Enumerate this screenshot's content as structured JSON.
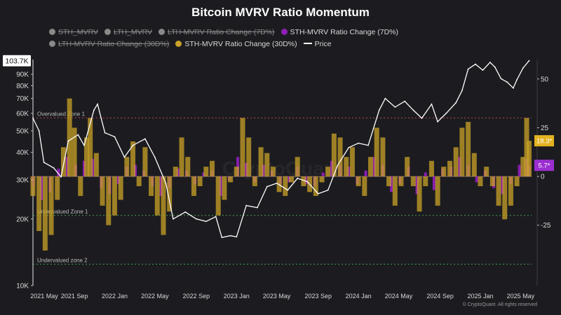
{
  "title": "Bitcoin MVRV Ratio Momentum",
  "legend": [
    {
      "label": "STH_MVRV",
      "color": "#8a8a8a",
      "hidden": true,
      "kind": "dot"
    },
    {
      "label": "LTH_MVRV",
      "color": "#8a8a8a",
      "hidden": true,
      "kind": "dot"
    },
    {
      "label": "LTH-MVRV Ratio Change (7D%)",
      "color": "#8a8a8a",
      "hidden": true,
      "kind": "dot"
    },
    {
      "label": "STH-MVRV Ratio Change (7D%)",
      "color": "#8e1fb8",
      "hidden": false,
      "kind": "dot"
    },
    {
      "label": "LTH-MVRV Ratio Change (30D%)",
      "color": "#8a8a8a",
      "hidden": true,
      "kind": "dot"
    },
    {
      "label": "STH-MVRV Ratio Change (30D%)",
      "color": "#c9a227",
      "hidden": false,
      "kind": "dot"
    },
    {
      "label": "Price",
      "color": "#ffffff",
      "hidden": false,
      "kind": "line"
    }
  ],
  "footer": "© CryptoQuant. All rights reserved",
  "chart_data": {
    "type": "line",
    "x_ticks": [
      "2021 May",
      "2021 Sep",
      "2022 Jan",
      "2022 May",
      "2022 Sep",
      "2023 Jan",
      "2023 May",
      "2023 Sep",
      "2024 Jan",
      "2024 May",
      "2024 Sep",
      "2025 Jan",
      "2025 May"
    ],
    "left_axis": {
      "scale": "log",
      "ticks": [
        "10K",
        "20K",
        "30K",
        "40K",
        "50K",
        "60K",
        "70K",
        "80K",
        "90K"
      ],
      "tick_values": [
        10000,
        20000,
        30000,
        40000,
        50000,
        60000,
        70000,
        80000,
        90000
      ],
      "range": [
        10000,
        105000
      ],
      "current_label": "103.7K"
    },
    "right_axis": {
      "ticks": [
        "50",
        "25",
        "0",
        "-25"
      ],
      "tick_values": [
        50,
        25,
        0,
        -25
      ],
      "range": [
        -56,
        60
      ]
    },
    "zones": [
      {
        "label": "Overvalued Zone 1",
        "value": 30,
        "color": "#e05050"
      },
      {
        "label": "Undervalued Zone 1",
        "value": -20,
        "color": "#4fbf5f"
      },
      {
        "label": "Undervalued zone 2",
        "value": -45,
        "color": "#4fbf5f"
      }
    ],
    "markers": [
      {
        "label": "18.3*",
        "value": 18.3,
        "color": "#e3b21f"
      },
      {
        "label": "5.7*",
        "value": 5.7,
        "color": "#9b2fd0"
      }
    ],
    "series": [
      {
        "name": "Price",
        "color": "#ffffff",
        "values": [
          [
            2021.33,
            57000
          ],
          [
            2021.38,
            50000
          ],
          [
            2021.42,
            36000
          ],
          [
            2021.5,
            34000
          ],
          [
            2021.56,
            31000
          ],
          [
            2021.62,
            45000
          ],
          [
            2021.7,
            48000
          ],
          [
            2021.75,
            43000
          ],
          [
            2021.83,
            62000
          ],
          [
            2021.86,
            66000
          ],
          [
            2021.92,
            49000
          ],
          [
            2022.0,
            47000
          ],
          [
            2022.08,
            38000
          ],
          [
            2022.15,
            43000
          ],
          [
            2022.25,
            46000
          ],
          [
            2022.33,
            38000
          ],
          [
            2022.42,
            29000
          ],
          [
            2022.48,
            20000
          ],
          [
            2022.58,
            21500
          ],
          [
            2022.67,
            20000
          ],
          [
            2022.75,
            19500
          ],
          [
            2022.83,
            20500
          ],
          [
            2022.88,
            16500
          ],
          [
            2022.95,
            16800
          ],
          [
            2023.0,
            16600
          ],
          [
            2023.08,
            23000
          ],
          [
            2023.17,
            22500
          ],
          [
            2023.25,
            28000
          ],
          [
            2023.33,
            29000
          ],
          [
            2023.42,
            27000
          ],
          [
            2023.5,
            30500
          ],
          [
            2023.58,
            29500
          ],
          [
            2023.67,
            26000
          ],
          [
            2023.75,
            27000
          ],
          [
            2023.83,
            35000
          ],
          [
            2023.92,
            42000
          ],
          [
            2024.0,
            44000
          ],
          [
            2024.08,
            43000
          ],
          [
            2024.17,
            62000
          ],
          [
            2024.22,
            70000
          ],
          [
            2024.3,
            64000
          ],
          [
            2024.38,
            68000
          ],
          [
            2024.45,
            62000
          ],
          [
            2024.52,
            57000
          ],
          [
            2024.6,
            66000
          ],
          [
            2024.65,
            55000
          ],
          [
            2024.72,
            60000
          ],
          [
            2024.8,
            67000
          ],
          [
            2024.85,
            76000
          ],
          [
            2024.9,
            95000
          ],
          [
            2024.96,
            100000
          ],
          [
            2025.02,
            94000
          ],
          [
            2025.08,
            102000
          ],
          [
            2025.12,
            97000
          ],
          [
            2025.17,
            86000
          ],
          [
            2025.22,
            83000
          ],
          [
            2025.27,
            78000
          ],
          [
            2025.3,
            85000
          ],
          [
            2025.35,
            96000
          ],
          [
            2025.4,
            103700
          ]
        ]
      },
      {
        "name": "STH-MVRV Ratio Change (30D%)",
        "color": "#c9a227",
        "values": [
          [
            2021.33,
            -10
          ],
          [
            2021.38,
            -28
          ],
          [
            2021.43,
            -38
          ],
          [
            2021.48,
            -30
          ],
          [
            2021.53,
            -12
          ],
          [
            2021.58,
            15
          ],
          [
            2021.63,
            40
          ],
          [
            2021.67,
            25
          ],
          [
            2021.72,
            -10
          ],
          [
            2021.77,
            20
          ],
          [
            2021.8,
            30
          ],
          [
            2021.85,
            12
          ],
          [
            2021.9,
            -15
          ],
          [
            2021.95,
            -25
          ],
          [
            2022.0,
            -20
          ],
          [
            2022.05,
            -12
          ],
          [
            2022.1,
            10
          ],
          [
            2022.15,
            18
          ],
          [
            2022.2,
            -5
          ],
          [
            2022.25,
            15
          ],
          [
            2022.3,
            -10
          ],
          [
            2022.35,
            -20
          ],
          [
            2022.4,
            -30
          ],
          [
            2022.45,
            -18
          ],
          [
            2022.5,
            5
          ],
          [
            2022.55,
            20
          ],
          [
            2022.6,
            10
          ],
          [
            2022.65,
            -10
          ],
          [
            2022.7,
            -5
          ],
          [
            2022.75,
            5
          ],
          [
            2022.8,
            8
          ],
          [
            2022.85,
            -20
          ],
          [
            2022.9,
            -12
          ],
          [
            2022.95,
            -3
          ],
          [
            2023.0,
            5
          ],
          [
            2023.05,
            30
          ],
          [
            2023.1,
            20
          ],
          [
            2023.15,
            -5
          ],
          [
            2023.2,
            15
          ],
          [
            2023.25,
            12
          ],
          [
            2023.3,
            5
          ],
          [
            2023.35,
            -8
          ],
          [
            2023.4,
            -10
          ],
          [
            2023.45,
            -3
          ],
          [
            2023.5,
            10
          ],
          [
            2023.55,
            -5
          ],
          [
            2023.6,
            -8
          ],
          [
            2023.65,
            -10
          ],
          [
            2023.7,
            -3
          ],
          [
            2023.75,
            5
          ],
          [
            2023.8,
            22
          ],
          [
            2023.85,
            20
          ],
          [
            2023.9,
            10
          ],
          [
            2023.95,
            15
          ],
          [
            2024.0,
            -5
          ],
          [
            2024.05,
            -10
          ],
          [
            2024.1,
            10
          ],
          [
            2024.15,
            25
          ],
          [
            2024.2,
            20
          ],
          [
            2024.25,
            -5
          ],
          [
            2024.3,
            -15
          ],
          [
            2024.35,
            -5
          ],
          [
            2024.4,
            10
          ],
          [
            2024.45,
            -5
          ],
          [
            2024.5,
            -18
          ],
          [
            2024.55,
            -5
          ],
          [
            2024.6,
            8
          ],
          [
            2024.65,
            -15
          ],
          [
            2024.7,
            5
          ],
          [
            2024.75,
            8
          ],
          [
            2024.8,
            15
          ],
          [
            2024.85,
            25
          ],
          [
            2024.9,
            28
          ],
          [
            2024.95,
            12
          ],
          [
            2025.0,
            -5
          ],
          [
            2025.05,
            5
          ],
          [
            2025.1,
            -5
          ],
          [
            2025.15,
            -15
          ],
          [
            2025.2,
            -22
          ],
          [
            2025.25,
            -15
          ],
          [
            2025.3,
            -5
          ],
          [
            2025.35,
            10
          ],
          [
            2025.38,
            30
          ],
          [
            2025.4,
            18.3
          ]
        ]
      },
      {
        "name": "STH-MVRV Ratio Change (7D%)",
        "color": "#8e1fb8",
        "values": [
          [
            2021.33,
            -5
          ],
          [
            2021.4,
            -12
          ],
          [
            2021.47,
            -8
          ],
          [
            2021.54,
            4
          ],
          [
            2021.61,
            10
          ],
          [
            2021.68,
            6
          ],
          [
            2021.75,
            8
          ],
          [
            2021.82,
            9
          ],
          [
            2021.89,
            -6
          ],
          [
            2021.96,
            -9
          ],
          [
            2022.03,
            -4
          ],
          [
            2022.1,
            5
          ],
          [
            2022.17,
            6
          ],
          [
            2022.24,
            3
          ],
          [
            2022.31,
            -5
          ],
          [
            2022.38,
            -10
          ],
          [
            2022.45,
            -6
          ],
          [
            2022.52,
            4
          ],
          [
            2022.59,
            3
          ],
          [
            2022.66,
            -4
          ],
          [
            2022.73,
            2
          ],
          [
            2022.8,
            3
          ],
          [
            2022.87,
            -10
          ],
          [
            2022.94,
            -2
          ],
          [
            2023.01,
            10
          ],
          [
            2023.08,
            7
          ],
          [
            2023.15,
            -3
          ],
          [
            2023.22,
            6
          ],
          [
            2023.29,
            3
          ],
          [
            2023.36,
            -4
          ],
          [
            2023.43,
            -3
          ],
          [
            2023.5,
            5
          ],
          [
            2023.57,
            -4
          ],
          [
            2023.64,
            -5
          ],
          [
            2023.71,
            2
          ],
          [
            2023.78,
            8
          ],
          [
            2023.85,
            6
          ],
          [
            2023.92,
            5
          ],
          [
            2023.99,
            -4
          ],
          [
            2024.06,
            3
          ],
          [
            2024.13,
            10
          ],
          [
            2024.2,
            6
          ],
          [
            2024.27,
            -8
          ],
          [
            2024.34,
            -4
          ],
          [
            2024.41,
            5
          ],
          [
            2024.48,
            -9
          ],
          [
            2024.55,
            2
          ],
          [
            2024.62,
            -7
          ],
          [
            2024.69,
            4
          ],
          [
            2024.76,
            5
          ],
          [
            2024.83,
            10
          ],
          [
            2024.9,
            6
          ],
          [
            2024.97,
            -3
          ],
          [
            2025.04,
            3
          ],
          [
            2025.11,
            -6
          ],
          [
            2025.18,
            -9
          ],
          [
            2025.25,
            -4
          ],
          [
            2025.32,
            6
          ],
          [
            2025.38,
            9
          ],
          [
            2025.4,
            5.7
          ]
        ]
      }
    ]
  }
}
